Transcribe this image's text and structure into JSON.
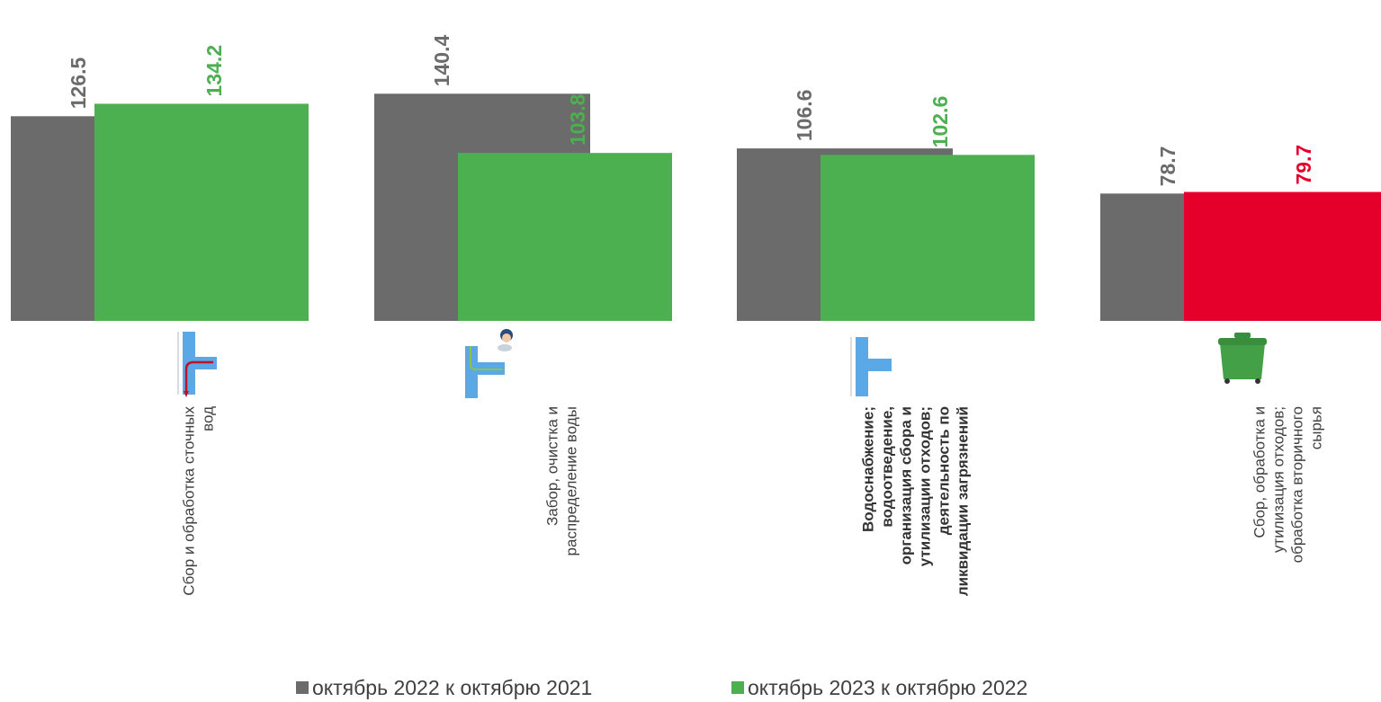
{
  "chart_data": {
    "type": "bar",
    "categories": [
      [
        "Сбор и обработка сточных",
        "вод"
      ],
      [
        "Забор, очистка и",
        "распределение воды"
      ],
      [
        "Водоснабжение;",
        "водоотведение,",
        "организация сбора и",
        "утилизации отходов;",
        "деятельность по",
        "ликвидации загрязнений"
      ],
      [
        "Сбор, обработка и",
        "утилизация отходов;",
        "обработка вторичного",
        "сырья"
      ]
    ],
    "category_bold": [
      false,
      false,
      true,
      false
    ],
    "series": [
      {
        "name": "октябрь 2022 к октябрю 2021",
        "values": [
          126.5,
          140.4,
          106.6,
          78.7
        ],
        "labels": [
          "126.5",
          "140.4",
          "106.6",
          "78.7"
        ],
        "color": "#6b6b6b"
      },
      {
        "name": "октябрь 2023 к октябрю 2022",
        "values": [
          134.2,
          103.8,
          102.6,
          79.7
        ],
        "labels": [
          "134.2",
          "103.8",
          "102.6",
          "79.7"
        ],
        "color": "#4caf50"
      }
    ],
    "bar_colors_series2": [
      "#4caf50",
      "#4caf50",
      "#4caf50",
      "#e4002b"
    ],
    "label_colors_series1": [
      "#6b6b6b",
      "#6b6b6b",
      "#6b6b6b",
      "#6b6b6b"
    ],
    "label_colors_series2": [
      "#4caf50",
      "#4caf50",
      "#4caf50",
      "#e4002b"
    ],
    "icons": [
      "wastewater-pipe-icon",
      "water-intake-pipe-icon",
      "water-pipe-icon",
      "waste-container-icon"
    ],
    "legend_position": "bottom",
    "grid": false
  },
  "legend": {
    "series1": "октябрь 2022 к октябрю 2021",
    "series2": "октябрь 2023 к октябрю 2022"
  },
  "colors": {
    "series1": "#6b6b6b",
    "series2": "#4caf50",
    "negative": "#e4002b"
  }
}
